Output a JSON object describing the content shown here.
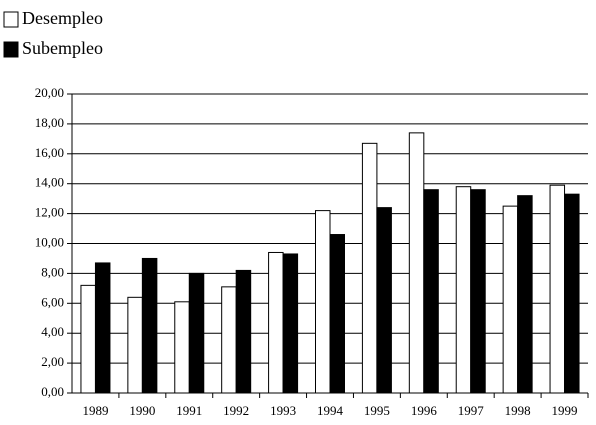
{
  "chart_data": {
    "type": "bar",
    "categories": [
      "1989",
      "1990",
      "1991",
      "1992",
      "1993",
      "1994",
      "1995",
      "1996",
      "1997",
      "1998",
      "1999"
    ],
    "series": [
      {
        "name": "Desempleo",
        "color": "#ffffff",
        "values": [
          7.2,
          6.4,
          6.1,
          7.1,
          9.4,
          12.2,
          16.7,
          17.4,
          13.8,
          12.5,
          13.9
        ]
      },
      {
        "name": "Subempleo",
        "color": "#000000",
        "values": [
          8.7,
          9.0,
          8.0,
          8.2,
          9.3,
          10.6,
          12.4,
          13.6,
          13.6,
          13.2,
          13.3
        ]
      }
    ],
    "ylim": [
      0,
      20
    ],
    "yticks": [
      {
        "value": 0,
        "label": "0,00"
      },
      {
        "value": 2,
        "label": "2,00"
      },
      {
        "value": 4,
        "label": "4,00"
      },
      {
        "value": 6,
        "label": "6,00"
      },
      {
        "value": 8,
        "label": "8,00"
      },
      {
        "value": 10,
        "label": "10,00"
      },
      {
        "value": 12,
        "label": "12,00"
      },
      {
        "value": 14,
        "label": "14,00"
      },
      {
        "value": 16,
        "label": "16,00"
      },
      {
        "value": 18,
        "label": "18,00"
      },
      {
        "value": 20,
        "label": "20,00"
      }
    ],
    "grid": true
  }
}
